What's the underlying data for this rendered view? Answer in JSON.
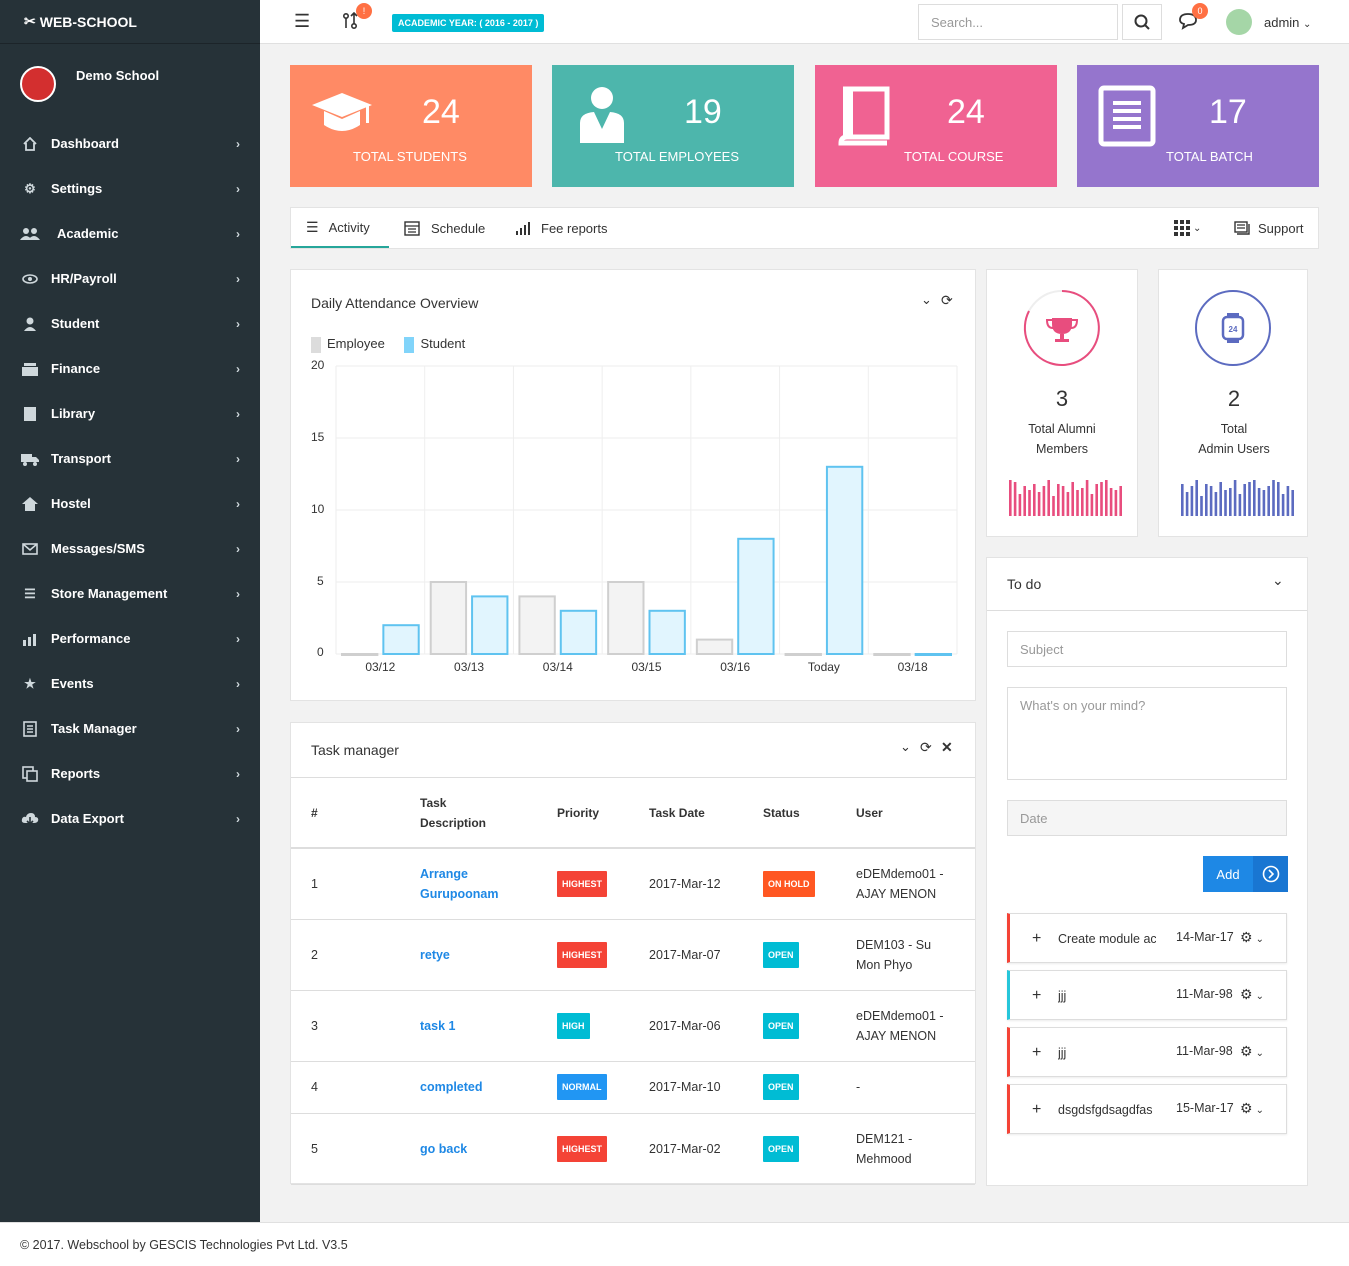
{
  "brand": "WEB-SCHOOL",
  "school": "Demo School",
  "nav": [
    "Dashboard",
    "Settings",
    "Academic",
    "HR/Payroll",
    "Student",
    "Finance",
    "Library",
    "Transport",
    "Hostel",
    "Messages/SMS",
    "Store Management",
    "Performance",
    "Events",
    "Task Manager",
    "Reports",
    "Data Export"
  ],
  "topbar": {
    "year": "ACADEMIC YEAR: ( 2016 - 2017 )",
    "notif_badge": "!",
    "msg_badge": "0",
    "search_placeholder": "Search...",
    "user": "admin"
  },
  "stats": [
    {
      "value": "24",
      "label": "TOTAL STUDENTS",
      "color": "#ff8a65"
    },
    {
      "value": "19",
      "label": "TOTAL EMPLOYEES",
      "color": "#4db6ac"
    },
    {
      "value": "24",
      "label": "TOTAL COURSE",
      "color": "#f06292"
    },
    {
      "value": "17",
      "label": "TOTAL BATCH",
      "color": "#9575cd"
    }
  ],
  "tabs": {
    "activity": "Activity",
    "schedule": "Schedule",
    "fee": "Fee reports",
    "support": "Support"
  },
  "attendance": {
    "title": "Daily Attendance Overview",
    "legend": [
      "Employee",
      "Student"
    ],
    "y_ticks": [
      "20",
      "15",
      "10",
      "5",
      "0"
    ]
  },
  "chart_data": {
    "type": "bar",
    "categories": [
      "03/12",
      "03/13",
      "03/14",
      "03/15",
      "03/16",
      "Today",
      "03/18"
    ],
    "series": [
      {
        "name": "Employee",
        "values": [
          0,
          5,
          4,
          5,
          1,
          0,
          0
        ]
      },
      {
        "name": "Student",
        "values": [
          2,
          4,
          3,
          3,
          8,
          13,
          0
        ]
      }
    ],
    "ylim": [
      0,
      20
    ],
    "title": "Daily Attendance Overview"
  },
  "mini": [
    {
      "value": "3",
      "label1": "Total Alumni",
      "label2": "Members",
      "color": "#e84d7e"
    },
    {
      "value": "2",
      "label1": "Total",
      "label2": "Admin Users",
      "color": "#5c6bc0"
    }
  ],
  "tasks": {
    "title": "Task manager",
    "headers": [
      "#",
      "Task Description",
      "Priority",
      "Task Date",
      "Status",
      "User"
    ],
    "rows": [
      {
        "n": "1",
        "desc": "Arrange Gurupoonam",
        "prio": "HIGHEST",
        "date": "2017-Mar-12",
        "status": "ON HOLD",
        "user": "eDEMdemo01 - AJAY MENON"
      },
      {
        "n": "2",
        "desc": "retye",
        "prio": "HIGHEST",
        "date": "2017-Mar-07",
        "status": "OPEN",
        "user": "DEM103 - Su Mon Phyo"
      },
      {
        "n": "3",
        "desc": "task 1",
        "prio": "HIGH",
        "date": "2017-Mar-06",
        "status": "OPEN",
        "user": "eDEMdemo01 - AJAY MENON"
      },
      {
        "n": "4",
        "desc": "completed",
        "prio": "NORMAL",
        "date": "2017-Mar-10",
        "status": "OPEN",
        "user": "-"
      },
      {
        "n": "5",
        "desc": "go back",
        "prio": "HIGHEST",
        "date": "2017-Mar-02",
        "status": "OPEN",
        "user": "DEM121 - Mehmood"
      }
    ]
  },
  "todo": {
    "title": "To do",
    "subject_placeholder": "Subject",
    "mind_placeholder": "What's on your mind?",
    "date_placeholder": "Date",
    "add": "Add",
    "items": [
      {
        "text": "Create module ac",
        "date": "14-Mar-17",
        "color": "#f44336"
      },
      {
        "text": "jjj",
        "date": "11-Mar-98",
        "color": "#26c6da"
      },
      {
        "text": "jjj",
        "date": "11-Mar-98",
        "color": "#f44336"
      },
      {
        "text": "dsgdsfgdsagdfas",
        "date": "15-Mar-17",
        "color": "#f44336"
      }
    ]
  },
  "footer": "© 2017. Webschool by GESCIS Technologies Pvt Ltd. V3.5"
}
